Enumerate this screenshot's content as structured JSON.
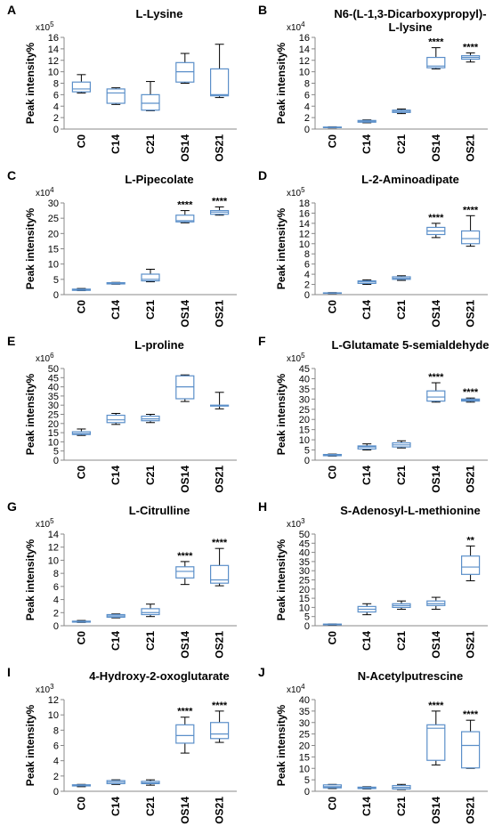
{
  "chart_data": [
    {
      "type": "box",
      "panel": "A",
      "title": [
        "L-Lysine"
      ],
      "ylabel": "Peak intensity%",
      "multiplier": {
        "base": "x10",
        "exponent": "5"
      },
      "categories": [
        "C0",
        "C14",
        "C21",
        "OS14",
        "OS21"
      ],
      "ylim": [
        0,
        16
      ],
      "yticks": [
        0,
        2,
        4,
        6,
        8,
        10,
        12,
        14,
        16
      ],
      "box_color": "#5b8fc9",
      "whisker_color": "#000000",
      "boxes": [
        {
          "min": 6.3,
          "q1": 6.5,
          "median": 7,
          "q3": 8.2,
          "max": 9.5
        },
        {
          "min": 4.3,
          "q1": 4.5,
          "median": 6.3,
          "q3": 7,
          "max": 7.2
        },
        {
          "min": 3.2,
          "q1": 3.3,
          "median": 4.5,
          "q3": 6,
          "max": 8.3
        },
        {
          "min": 8,
          "q1": 8.2,
          "median": 10,
          "q3": 11.6,
          "max": 13.2
        },
        {
          "min": 5.5,
          "q1": 5.8,
          "median": 6,
          "q3": 10.5,
          "max": 14.8
        }
      ],
      "annotations": [
        null,
        null,
        null,
        null,
        null
      ]
    },
    {
      "type": "box",
      "panel": "B",
      "title": [
        "N6-(L-1,3-Dicarboxypropyl)-",
        "L-lysine"
      ],
      "ylabel": "Peak intensity%",
      "multiplier": {
        "base": "x10",
        "exponent": "4"
      },
      "categories": [
        "C0",
        "C14",
        "C21",
        "OS14",
        "OS21"
      ],
      "ylim": [
        0,
        16
      ],
      "yticks": [
        0,
        2,
        4,
        6,
        8,
        10,
        12,
        14,
        16
      ],
      "box_color": "#5b8fc9",
      "whisker_color": "#000000",
      "boxes": [
        {
          "min": 0.2,
          "q1": 0.25,
          "median": 0.3,
          "q3": 0.35,
          "max": 0.4
        },
        {
          "min": 1.1,
          "q1": 1.2,
          "median": 1.35,
          "q3": 1.5,
          "max": 1.6
        },
        {
          "min": 2.7,
          "q1": 2.9,
          "median": 3.1,
          "q3": 3.3,
          "max": 3.5
        },
        {
          "min": 10.5,
          "q1": 10.7,
          "median": 11,
          "q3": 12.5,
          "max": 14.2
        },
        {
          "min": 11.7,
          "q1": 12.2,
          "median": 12.5,
          "q3": 12.8,
          "max": 13.3
        }
      ],
      "annotations": [
        null,
        null,
        null,
        "****",
        "****"
      ]
    },
    {
      "type": "box",
      "panel": "C",
      "title": [
        "L-Pipecolate"
      ],
      "ylabel": "Peak intensity%",
      "multiplier": {
        "base": "x10",
        "exponent": "4"
      },
      "categories": [
        "C0",
        "C14",
        "C21",
        "OS14",
        "OS21"
      ],
      "ylim": [
        0,
        30
      ],
      "yticks": [
        0,
        5,
        10,
        15,
        20,
        25,
        30
      ],
      "box_color": "#5b8fc9",
      "whisker_color": "#000000",
      "boxes": [
        {
          "min": 1.3,
          "q1": 1.4,
          "median": 1.6,
          "q3": 1.8,
          "max": 2
        },
        {
          "min": 3.4,
          "q1": 3.5,
          "median": 3.7,
          "q3": 3.9,
          "max": 4
        },
        {
          "min": 4.2,
          "q1": 4.5,
          "median": 5,
          "q3": 6.7,
          "max": 8.3
        },
        {
          "min": 23.5,
          "q1": 23.8,
          "median": 24.2,
          "q3": 26,
          "max": 27.5
        },
        {
          "min": 26,
          "q1": 26.3,
          "median": 27,
          "q3": 27.5,
          "max": 28.7
        }
      ],
      "annotations": [
        null,
        null,
        null,
        "****",
        "****"
      ]
    },
    {
      "type": "box",
      "panel": "D",
      "title": [
        "L-2-Aminoadipate"
      ],
      "ylabel": "Peak intensity%",
      "multiplier": {
        "base": "x10",
        "exponent": "5"
      },
      "categories": [
        "C0",
        "C14",
        "C21",
        "OS14",
        "OS21"
      ],
      "ylim": [
        0,
        18
      ],
      "yticks": [
        0,
        2,
        4,
        6,
        8,
        10,
        12,
        14,
        16,
        18
      ],
      "box_color": "#5b8fc9",
      "whisker_color": "#000000",
      "boxes": [
        {
          "min": 0.2,
          "q1": 0.25,
          "median": 0.3,
          "q3": 0.35,
          "max": 0.4
        },
        {
          "min": 2,
          "q1": 2.2,
          "median": 2.5,
          "q3": 2.7,
          "max": 2.9
        },
        {
          "min": 2.8,
          "q1": 3,
          "median": 3.2,
          "q3": 3.5,
          "max": 3.7
        },
        {
          "min": 11.2,
          "q1": 11.8,
          "median": 12.5,
          "q3": 13.2,
          "max": 14
        },
        {
          "min": 9.5,
          "q1": 10,
          "median": 11,
          "q3": 12.5,
          "max": 15.5
        }
      ],
      "annotations": [
        null,
        null,
        null,
        "****",
        "****"
      ]
    },
    {
      "type": "box",
      "panel": "E",
      "title": [
        "L-proline"
      ],
      "ylabel": "Peak intensity%",
      "multiplier": {
        "base": "x10",
        "exponent": "6"
      },
      "categories": [
        "C0",
        "C14",
        "C21",
        "OS14",
        "OS21"
      ],
      "ylim": [
        0,
        50
      ],
      "yticks": [
        0,
        5,
        10,
        15,
        20,
        25,
        30,
        35,
        40,
        45,
        50
      ],
      "box_color": "#5b8fc9",
      "whisker_color": "#000000",
      "boxes": [
        {
          "min": 13.5,
          "q1": 14,
          "median": 14.5,
          "q3": 15.5,
          "max": 17
        },
        {
          "min": 19.5,
          "q1": 20.5,
          "median": 22,
          "q3": 24.5,
          "max": 25.5
        },
        {
          "min": 20.5,
          "q1": 21.5,
          "median": 22.5,
          "q3": 24,
          "max": 25
        },
        {
          "min": 32,
          "q1": 33.5,
          "median": 40,
          "q3": 46,
          "max": 46.5
        },
        {
          "min": 28,
          "q1": 29.5,
          "median": 29.8,
          "q3": 30,
          "max": 37
        }
      ],
      "annotations": [
        null,
        null,
        null,
        null,
        null
      ]
    },
    {
      "type": "box",
      "panel": "F",
      "title": [
        "L-Glutamate 5-semialdehyde"
      ],
      "ylabel": "Peak intensity%",
      "multiplier": {
        "base": "x10",
        "exponent": "5"
      },
      "categories": [
        "C0",
        "C14",
        "C21",
        "OS14",
        "OS21"
      ],
      "ylim": [
        0,
        45
      ],
      "yticks": [
        0,
        5,
        10,
        15,
        20,
        25,
        30,
        35,
        40,
        45
      ],
      "box_color": "#5b8fc9",
      "whisker_color": "#000000",
      "boxes": [
        {
          "min": 2,
          "q1": 2.2,
          "median": 2.5,
          "q3": 2.8,
          "max": 3
        },
        {
          "min": 5,
          "q1": 5.5,
          "median": 6.5,
          "q3": 7,
          "max": 8
        },
        {
          "min": 6,
          "q1": 6.5,
          "median": 7.5,
          "q3": 8.5,
          "max": 9.5
        },
        {
          "min": 28.5,
          "q1": 29,
          "median": 31,
          "q3": 34,
          "max": 38
        },
        {
          "min": 28.5,
          "q1": 29,
          "median": 29.5,
          "q3": 30,
          "max": 30.5
        }
      ],
      "annotations": [
        null,
        null,
        null,
        "****",
        "****"
      ]
    },
    {
      "type": "box",
      "panel": "G",
      "title": [
        "L-Citrulline"
      ],
      "ylabel": "Peak intensity%",
      "multiplier": {
        "base": "x10",
        "exponent": "5"
      },
      "categories": [
        "C0",
        "C14",
        "C21",
        "OS14",
        "OS21"
      ],
      "ylim": [
        0,
        14
      ],
      "yticks": [
        0,
        2,
        4,
        6,
        8,
        10,
        12,
        14
      ],
      "box_color": "#5b8fc9",
      "whisker_color": "#000000",
      "boxes": [
        {
          "min": 0.5,
          "q1": 0.55,
          "median": 0.6,
          "q3": 0.7,
          "max": 0.8
        },
        {
          "min": 1.2,
          "q1": 1.3,
          "median": 1.5,
          "q3": 1.7,
          "max": 1.8
        },
        {
          "min": 1.4,
          "q1": 1.7,
          "median": 2,
          "q3": 2.6,
          "max": 3.3
        },
        {
          "min": 6.3,
          "q1": 7.3,
          "median": 8.3,
          "q3": 9,
          "max": 9.8
        },
        {
          "min": 6.1,
          "q1": 6.5,
          "median": 7,
          "q3": 9.2,
          "max": 11.8
        }
      ],
      "annotations": [
        null,
        null,
        null,
        "****",
        "****"
      ]
    },
    {
      "type": "box",
      "panel": "H",
      "title": [
        "S-Adenosyl-L-methionine"
      ],
      "ylabel": "Peak intensity%",
      "multiplier": {
        "base": "x10",
        "exponent": "3"
      },
      "categories": [
        "C0",
        "C14",
        "C21",
        "OS14",
        "OS21"
      ],
      "ylim": [
        0,
        50
      ],
      "yticks": [
        0,
        5,
        10,
        15,
        20,
        25,
        30,
        35,
        40,
        45,
        50
      ],
      "box_color": "#5b8fc9",
      "whisker_color": "#000000",
      "boxes": [
        {
          "min": 0.3,
          "q1": 0.5,
          "median": 0.7,
          "q3": 0.9,
          "max": 1
        },
        {
          "min": 6,
          "q1": 7.5,
          "median": 9,
          "q3": 10.5,
          "max": 12
        },
        {
          "min": 9,
          "q1": 10,
          "median": 11,
          "q3": 12,
          "max": 13.5
        },
        {
          "min": 9,
          "q1": 11,
          "median": 12,
          "q3": 13.5,
          "max": 15.5
        },
        {
          "min": 24.5,
          "q1": 28,
          "median": 32,
          "q3": 38,
          "max": 43.5
        }
      ],
      "annotations": [
        null,
        null,
        null,
        null,
        "**"
      ]
    },
    {
      "type": "box",
      "panel": "I",
      "title": [
        "4-Hydroxy-2-oxoglutarate"
      ],
      "ylabel": "Peak intensity%",
      "multiplier": {
        "base": "x10",
        "exponent": "3"
      },
      "categories": [
        "C0",
        "C14",
        "C21",
        "OS14",
        "OS21"
      ],
      "ylim": [
        0,
        12
      ],
      "yticks": [
        0,
        2,
        4,
        6,
        8,
        10,
        12
      ],
      "box_color": "#5b8fc9",
      "whisker_color": "#000000",
      "boxes": [
        {
          "min": 0.6,
          "q1": 0.7,
          "median": 0.8,
          "q3": 0.85,
          "max": 0.9
        },
        {
          "min": 0.9,
          "q1": 1,
          "median": 1.2,
          "q3": 1.4,
          "max": 1.5
        },
        {
          "min": 0.8,
          "q1": 1,
          "median": 1.1,
          "q3": 1.3,
          "max": 1.5
        },
        {
          "min": 5,
          "q1": 6.3,
          "median": 7.3,
          "q3": 8.7,
          "max": 9.7
        },
        {
          "min": 6.4,
          "q1": 6.9,
          "median": 7.5,
          "q3": 9,
          "max": 10.5
        }
      ],
      "annotations": [
        null,
        null,
        null,
        "****",
        "****"
      ]
    },
    {
      "type": "box",
      "panel": "J",
      "title": [
        "N-Acetylputrescine"
      ],
      "ylabel": "Peak intensity%",
      "multiplier": {
        "base": "x10",
        "exponent": "4"
      },
      "categories": [
        "C0",
        "C14",
        "C21",
        "OS14",
        "OS21"
      ],
      "ylim": [
        0,
        40
      ],
      "yticks": [
        0,
        5,
        10,
        15,
        20,
        25,
        30,
        35,
        40
      ],
      "box_color": "#5b8fc9",
      "whisker_color": "#000000",
      "boxes": [
        {
          "min": 1.2,
          "q1": 1.5,
          "median": 2,
          "q3": 2.8,
          "max": 3
        },
        {
          "min": 1,
          "q1": 1.2,
          "median": 1.5,
          "q3": 1.8,
          "max": 2
        },
        {
          "min": 0.8,
          "q1": 1,
          "median": 1.7,
          "q3": 2.5,
          "max": 3
        },
        {
          "min": 11.5,
          "q1": 13.5,
          "median": 27.5,
          "q3": 29,
          "max": 35
        },
        {
          "min": 10,
          "q1": 10.2,
          "median": 20,
          "q3": 26,
          "max": 31
        }
      ],
      "annotations": [
        null,
        null,
        null,
        "****",
        "****"
      ]
    }
  ]
}
